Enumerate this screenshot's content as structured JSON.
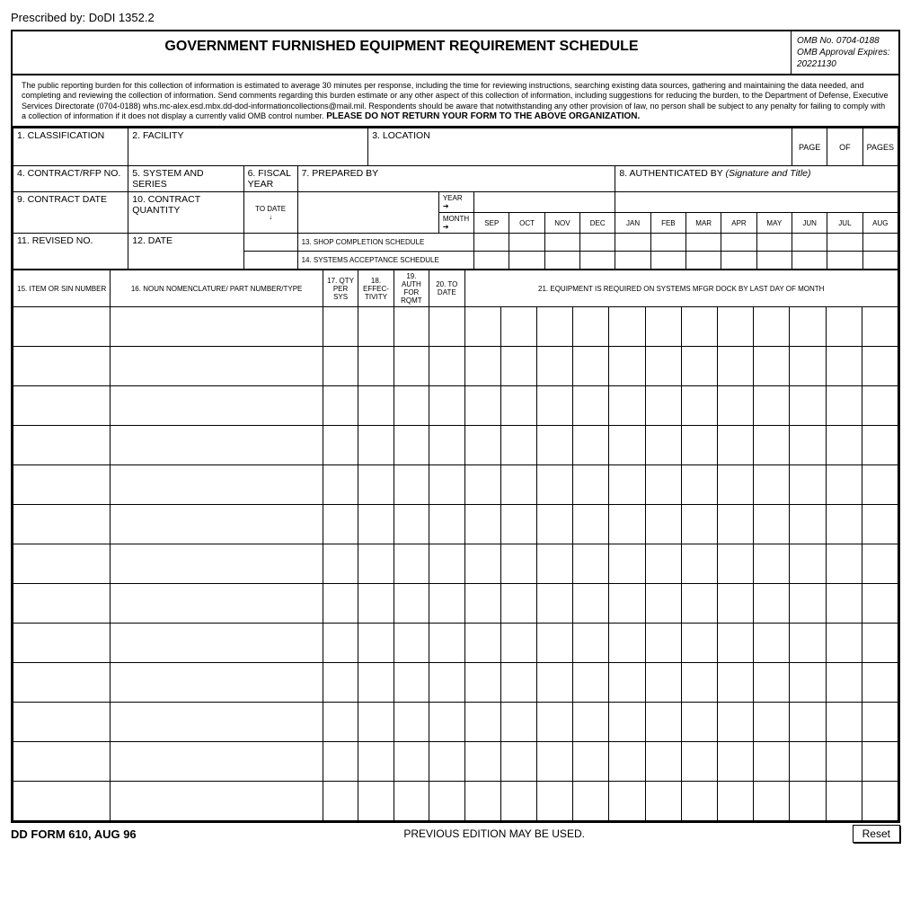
{
  "prescribed": "Prescribed by: DoDI 1352.2",
  "title": "GOVERNMENT FURNISHED EQUIPMENT REQUIREMENT SCHEDULE",
  "omb": {
    "no": "OMB No. 0704-0188",
    "approval": "OMB Approval Expires:",
    "date": "20221130"
  },
  "burden_text": "The public reporting burden for this collection of information is estimated to average 30 minutes per response, including the time for reviewing instructions, searching existing data sources, gathering and maintaining the data needed, and completing and reviewing the collection of information.  Send comments regarding this burden estimate or any other aspect of this collection of information, including suggestions for reducing the burden, to the Department of Defense, Executive Services Directorate (0704-0188) whs.mc-alex.esd.mbx.dd-dod-informationcollections@mail.mil. Respondents should be aware that notwithstanding any other provision of law, no person shall be subject to any penalty for failing to comply with a collection of information if it does not display a currently valid OMB control number.",
  "burden_bold": "PLEASE DO NOT RETURN YOUR FORM TO THE ABOVE ORGANIZATION.",
  "fields": {
    "f1": "1. CLASSIFICATION",
    "f2": "2. FACILITY",
    "f3": "3. LOCATION",
    "page": "PAGE",
    "of": "OF",
    "pages": "PAGES",
    "f4": "4. CONTRACT/RFP NO.",
    "f5": "5. SYSTEM AND SERIES",
    "f6": "6. FISCAL YEAR",
    "f7": "7. PREPARED BY",
    "f8": "8. AUTHENTICATED BY",
    "f8_note": "(Signature and Title)",
    "f9": "9. CONTRACT DATE",
    "f10": "10. CONTRACT QUANTITY",
    "to_date": "TO DATE",
    "year": "YEAR",
    "month": "MONTH",
    "months": [
      "SEP",
      "OCT",
      "NOV",
      "DEC",
      "JAN",
      "FEB",
      "MAR",
      "APR",
      "MAY",
      "JUN",
      "JUL",
      "AUG"
    ],
    "f11": "11. REVISED NO.",
    "f12": "12. DATE",
    "f13": "13. SHOP COMPLETION SCHEDULE",
    "f14": "14. SYSTEMS ACCEPTANCE SCHEDULE",
    "f15": "15. ITEM OR SIN NUMBER",
    "f16": "16. NOUN NOMENCLATURE/ PART NUMBER/TYPE",
    "f17": "17. QTY PER SYS",
    "f18": "18. EFFEC- TIVITY",
    "f19": "19. AUTH FOR RQMT",
    "f20": "20. TO DATE",
    "f21": "21. EQUIPMENT IS REQUIRED ON SYSTEMS MFGR DOCK BY LAST DAY OF MONTH"
  },
  "arrow_right": "➔",
  "arrow_down": "↓",
  "footer": {
    "form_no": "DD FORM 610, AUG 96",
    "edition": "PREVIOUS EDITION MAY BE USED.",
    "reset": "Reset"
  },
  "data_rows": 13
}
